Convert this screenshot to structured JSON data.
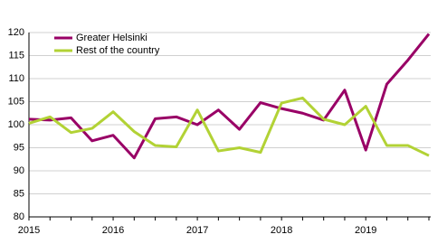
{
  "chart_data": {
    "type": "line",
    "categories": [
      "2015",
      null,
      null,
      null,
      "2016",
      null,
      null,
      null,
      "2017",
      null,
      null,
      null,
      "2018",
      null,
      null,
      null,
      "2019",
      null,
      null,
      null
    ],
    "series": [
      {
        "name": "Greater Helsinki",
        "color": "#990066",
        "values": [
          101.2,
          101,
          101.5,
          96.5,
          97.7,
          92.8,
          101.3,
          101.7,
          100,
          103.2,
          99,
          104.8,
          103.5,
          102.5,
          101,
          107.5,
          94.5,
          108.8,
          114,
          119.7
        ]
      },
      {
        "name": "Rest of the country",
        "color": "#b2d235",
        "values": [
          100.3,
          101.7,
          98.3,
          99.2,
          102.8,
          98.5,
          95.5,
          95.2,
          103.2,
          94.3,
          95,
          94,
          104.7,
          105.8,
          101.2,
          100,
          104,
          95.5,
          95.5,
          93.3
        ]
      }
    ],
    "ylim": [
      80,
      120
    ],
    "yticks": [
      80,
      85,
      90,
      95,
      100,
      105,
      110,
      115,
      120
    ],
    "grid": true,
    "legend": "top-left"
  }
}
